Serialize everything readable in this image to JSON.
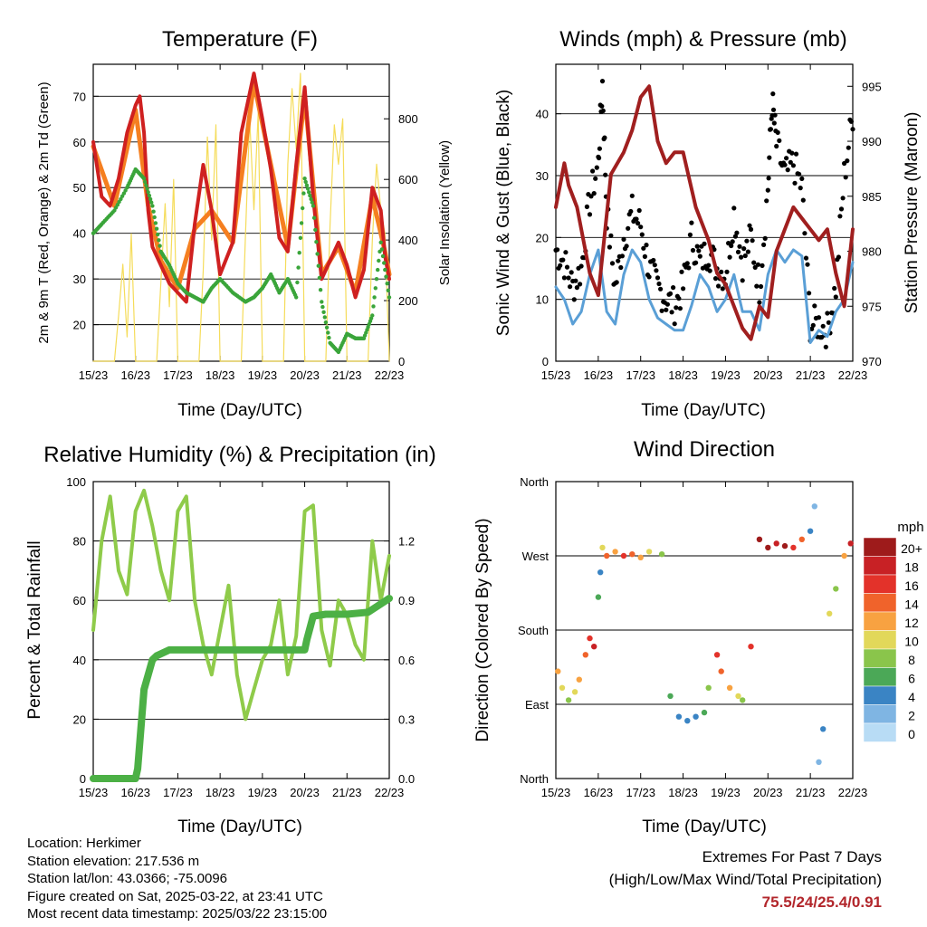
{
  "colors": {
    "temp2m": "#cf2020",
    "temp9m": "#f57f20",
    "dewpoint": "#3aa53a",
    "solar": "#f5dc5a",
    "wind": "#5a9fd6",
    "gust": "#000000",
    "pressure": "#a01f1f",
    "rh": "#8fcb4a",
    "precip": "#4cb045",
    "extremes": "#b2262b"
  },
  "info": {
    "location": "Location: Herkimer",
    "elevation": "Station elevation: 217.536 m",
    "latlon": "Station lat/lon: 43.0366; -75.0096",
    "created": "Figure created on Sat, 2025-03-22, at 23:41 UTC",
    "recent": "Most recent data timestamp: 2025/03/22 23:15:00"
  },
  "extremes": {
    "title": "Extremes For Past 7 Days",
    "subtitle": "(High/Low/Max Wind/Total Precipitation)",
    "values": "75.5/24/25.4/0.91"
  },
  "chart_data": [
    {
      "type": "line",
      "title": "Temperature (F)",
      "xlabel": "Time (Day/UTC)",
      "ylabel": "2m & 9m T (Red, Orange) & 2m Td (Green)",
      "ylabel_right": "Solar Insolation (Yellow)",
      "x_ticks": [
        "15/23",
        "16/23",
        "17/23",
        "18/23",
        "19/23",
        "20/23",
        "21/23",
        "22/23"
      ],
      "xlim": [
        0,
        7
      ],
      "ylim": [
        12,
        77
      ],
      "yticks": [
        20,
        30,
        40,
        50,
        60,
        70
      ],
      "ylim_right": [
        0,
        980
      ],
      "yticks_right": [
        0,
        200,
        400,
        600,
        800
      ],
      "grid": true,
      "series": [
        {
          "key": "t2m",
          "x": [
            0.0,
            0.2,
            0.4,
            0.6,
            0.8,
            1.0,
            1.1,
            1.2,
            1.3,
            1.4,
            1.6,
            1.8,
            2.0,
            2.2,
            2.4,
            2.6,
            2.8,
            3.0,
            3.3,
            3.5,
            3.8,
            4.0,
            4.2,
            4.4,
            4.6,
            4.8,
            5.0,
            5.2,
            5.4,
            5.6,
            5.8,
            6.0,
            6.2,
            6.4,
            6.6,
            6.8,
            6.9,
            7.0
          ],
          "y": [
            60,
            48,
            46,
            52,
            62,
            68,
            70,
            62,
            45,
            37,
            33,
            29,
            27,
            25,
            42,
            55,
            45,
            31,
            38,
            62,
            75,
            65,
            54,
            39,
            36,
            55,
            72,
            48,
            30,
            34,
            38,
            33,
            26,
            32,
            50,
            45,
            35,
            30
          ]
        },
        {
          "key": "t9m",
          "x": [
            0.0,
            0.5,
            1.0,
            1.3,
            1.6,
            2.0,
            2.4,
            2.8,
            3.3,
            3.8,
            4.2,
            4.6,
            5.0,
            5.4,
            5.8,
            6.2,
            6.6,
            6.9,
            7.0
          ],
          "y": [
            59,
            46,
            67,
            46,
            34,
            28,
            41,
            45,
            38,
            73,
            55,
            37,
            70,
            31,
            37,
            27,
            48,
            36,
            31
          ]
        },
        {
          "key": "td2m",
          "x": [
            0.0,
            0.2,
            0.5,
            0.8,
            1.0,
            1.2,
            1.4,
            1.6,
            1.8,
            2.0,
            2.2,
            2.4,
            2.6,
            2.8,
            3.0,
            3.3,
            3.6,
            3.8,
            4.0,
            4.2,
            4.4,
            4.6,
            4.8,
            5.0,
            5.2,
            5.4,
            5.6,
            5.8,
            6.0,
            6.2,
            6.4,
            6.6,
            6.8,
            7.0
          ],
          "y": [
            40,
            42,
            45,
            50,
            54,
            52,
            46,
            36,
            33,
            29,
            27,
            26,
            25,
            28,
            30,
            27,
            25,
            26,
            28,
            31,
            27,
            30,
            26,
            52,
            46,
            25,
            16,
            14,
            18,
            17,
            17,
            22,
            38,
            26
          ]
        },
        {
          "key": "solar",
          "x": [
            0.0,
            0.5,
            0.6,
            0.7,
            0.8,
            0.9,
            1.0,
            1.5,
            1.6,
            1.7,
            1.8,
            1.9,
            2.0,
            2.5,
            2.6,
            2.7,
            2.8,
            2.9,
            3.0,
            3.5,
            3.6,
            3.7,
            3.8,
            3.9,
            4.0,
            4.5,
            4.6,
            4.7,
            4.8,
            4.9,
            5.0,
            5.5,
            5.6,
            5.7,
            5.8,
            5.9,
            6.0,
            6.5,
            6.6,
            6.7,
            6.8,
            6.9,
            7.0
          ],
          "y": [
            0,
            0,
            150,
            320,
            80,
            420,
            0,
            0,
            260,
            520,
            180,
            600,
            0,
            0,
            300,
            740,
            400,
            780,
            0,
            0,
            420,
            800,
            500,
            820,
            0,
            0,
            650,
            900,
            700,
            950,
            0,
            0,
            450,
            780,
            650,
            800,
            0,
            0,
            400,
            650,
            500,
            420,
            0
          ]
        }
      ]
    },
    {
      "type": "scatter",
      "title": "Winds (mph) & Pressure (mb)",
      "xlabel": "Time (Day/UTC)",
      "ylabel": "Sonic Wind & Gust (Blue, Black)",
      "ylabel_right": "Station Pressure (Maroon)",
      "x_ticks": [
        "15/23",
        "16/23",
        "17/23",
        "18/23",
        "19/23",
        "20/23",
        "21/23",
        "22/23"
      ],
      "xlim": [
        0,
        7
      ],
      "ylim": [
        0,
        48
      ],
      "yticks": [
        0,
        10,
        20,
        30,
        40
      ],
      "ylim_right": [
        970,
        997
      ],
      "yticks_right": [
        970,
        975,
        980,
        985,
        990,
        995
      ],
      "grid": true,
      "series": [
        {
          "key": "wind",
          "x": [
            0.0,
            0.2,
            0.4,
            0.6,
            0.8,
            1.0,
            1.2,
            1.4,
            1.6,
            1.8,
            2.0,
            2.2,
            2.4,
            2.6,
            2.8,
            3.0,
            3.2,
            3.4,
            3.6,
            3.8,
            4.0,
            4.2,
            4.4,
            4.6,
            4.8,
            5.0,
            5.2,
            5.4,
            5.6,
            5.8,
            6.0,
            6.2,
            6.4,
            6.6,
            6.8,
            7.0
          ],
          "y": [
            12,
            10,
            6,
            8,
            14,
            18,
            8,
            6,
            14,
            18,
            16,
            10,
            7,
            6,
            5,
            5,
            9,
            14,
            12,
            8,
            10,
            14,
            8,
            8,
            5,
            14,
            18,
            16,
            18,
            17,
            3,
            5,
            4,
            8,
            10,
            16
          ]
        },
        {
          "key": "gust",
          "x": [
            0.0,
            0.2,
            0.4,
            0.6,
            0.8,
            1.0,
            1.1,
            1.2,
            1.4,
            1.6,
            1.8,
            2.0,
            2.2,
            2.4,
            2.6,
            2.8,
            3.0,
            3.2,
            3.4,
            3.6,
            3.8,
            4.0,
            4.2,
            4.4,
            4.6,
            4.8,
            5.0,
            5.1,
            5.2,
            5.4,
            5.6,
            5.8,
            6.0,
            6.2,
            6.4,
            6.6,
            6.8,
            7.0
          ],
          "y": [
            18,
            16,
            12,
            15,
            26,
            32,
            45,
            24,
            12,
            20,
            24,
            22,
            15,
            12,
            10,
            9,
            12,
            20,
            16,
            18,
            15,
            14,
            24,
            16,
            20,
            12,
            28,
            42,
            35,
            30,
            32,
            28,
            6,
            6,
            5,
            12,
            30,
            40
          ]
        },
        {
          "key": "pressure",
          "x": [
            0.0,
            0.2,
            0.3,
            0.5,
            0.8,
            1.0,
            1.3,
            1.6,
            1.8,
            2.0,
            2.2,
            2.4,
            2.6,
            2.8,
            3.0,
            3.3,
            3.6,
            3.8,
            4.0,
            4.2,
            4.4,
            4.6,
            4.8,
            5.0,
            5.2,
            5.4,
            5.6,
            5.8,
            6.0,
            6.2,
            6.4,
            6.6,
            6.8,
            7.0
          ],
          "y": [
            984,
            988,
            986,
            984,
            978,
            976,
            987,
            989,
            991,
            994,
            995,
            990,
            988,
            989,
            989,
            984,
            981,
            978,
            977,
            975,
            973,
            972,
            975,
            974,
            980,
            982,
            984,
            983,
            982,
            981,
            982,
            978,
            975,
            982
          ]
        }
      ]
    },
    {
      "type": "line",
      "title": "Relative Humidity (%) & Precipitation (in)",
      "xlabel": "Time (Day/UTC)",
      "ylabel": "Percent & Total Rainfall",
      "x_ticks": [
        "15/23",
        "16/23",
        "17/23",
        "18/23",
        "19/23",
        "20/23",
        "21/23",
        "22/23"
      ],
      "xlim": [
        0,
        7
      ],
      "ylim": [
        0,
        100
      ],
      "yticks": [
        0,
        20,
        40,
        60,
        80,
        100
      ],
      "ylim_right": [
        0,
        1.5
      ],
      "yticks_right": [
        "0.0",
        "0.3",
        "0.6",
        "0.9",
        "1.2"
      ],
      "grid": true,
      "series": [
        {
          "key": "rh",
          "x": [
            0.0,
            0.2,
            0.4,
            0.6,
            0.8,
            1.0,
            1.2,
            1.4,
            1.6,
            1.8,
            2.0,
            2.2,
            2.4,
            2.6,
            2.8,
            3.0,
            3.2,
            3.4,
            3.6,
            3.8,
            4.0,
            4.2,
            4.4,
            4.6,
            4.8,
            5.0,
            5.2,
            5.4,
            5.6,
            5.8,
            6.0,
            6.2,
            6.4,
            6.6,
            6.8,
            7.0
          ],
          "y": [
            50,
            80,
            95,
            70,
            62,
            90,
            97,
            85,
            70,
            60,
            90,
            95,
            60,
            45,
            35,
            50,
            65,
            35,
            20,
            30,
            40,
            45,
            60,
            35,
            48,
            90,
            92,
            50,
            38,
            60,
            55,
            45,
            40,
            80,
            60,
            75
          ]
        },
        {
          "key": "precip",
          "x": [
            0.0,
            0.5,
            1.0,
            1.05,
            1.2,
            1.4,
            1.5,
            1.8,
            2.0,
            3.0,
            4.0,
            5.0,
            5.05,
            5.2,
            5.5,
            6.0,
            6.5,
            7.0
          ],
          "y": [
            0,
            0,
            0,
            0.05,
            0.45,
            0.6,
            0.62,
            0.65,
            0.65,
            0.65,
            0.65,
            0.65,
            0.7,
            0.82,
            0.83,
            0.83,
            0.84,
            0.91
          ]
        }
      ]
    },
    {
      "type": "scatter",
      "title": "Wind Direction",
      "xlabel": "Time (Day/UTC)",
      "ylabel": "Direction (Colored By Speed)",
      "x_ticks": [
        "15/23",
        "16/23",
        "17/23",
        "18/23",
        "19/23",
        "20/23",
        "21/23",
        "22/23"
      ],
      "xlim": [
        0,
        7
      ],
      "ylim": [
        0,
        360
      ],
      "y_tick_labels": [
        "North",
        "East",
        "South",
        "West",
        "North"
      ],
      "grid": true,
      "legend_title": "mph",
      "legend_labels": [
        "20+",
        "18",
        "16",
        "14",
        "12",
        "10",
        "8",
        "6",
        "4",
        "2",
        "0"
      ],
      "legend_colors": [
        "#9e1b1b",
        "#c82125",
        "#e3322a",
        "#f0632b",
        "#f8a241",
        "#e2d85a",
        "#8ac54b",
        "#4ba857",
        "#3a84c4",
        "#7fb5e3",
        "#b8dcf5"
      ],
      "points": [
        {
          "x": 0.05,
          "dir": 130,
          "spd": 12
        },
        {
          "x": 0.15,
          "dir": 110,
          "spd": 10
        },
        {
          "x": 0.3,
          "dir": 95,
          "spd": 8
        },
        {
          "x": 0.45,
          "dir": 105,
          "spd": 10
        },
        {
          "x": 0.55,
          "dir": 120,
          "spd": 12
        },
        {
          "x": 0.7,
          "dir": 150,
          "spd": 14
        },
        {
          "x": 0.8,
          "dir": 170,
          "spd": 16
        },
        {
          "x": 0.9,
          "dir": 160,
          "spd": 18
        },
        {
          "x": 1.0,
          "dir": 220,
          "spd": 6
        },
        {
          "x": 1.05,
          "dir": 250,
          "spd": 4
        },
        {
          "x": 1.1,
          "dir": 280,
          "spd": 10
        },
        {
          "x": 1.2,
          "dir": 270,
          "spd": 14
        },
        {
          "x": 1.4,
          "dir": 275,
          "spd": 12
        },
        {
          "x": 1.6,
          "dir": 270,
          "spd": 16
        },
        {
          "x": 1.8,
          "dir": 272,
          "spd": 14
        },
        {
          "x": 2.0,
          "dir": 268,
          "spd": 12
        },
        {
          "x": 2.2,
          "dir": 275,
          "spd": 10
        },
        {
          "x": 2.5,
          "dir": 272,
          "spd": 8
        },
        {
          "x": 2.7,
          "dir": 100,
          "spd": 6
        },
        {
          "x": 2.9,
          "dir": 75,
          "spd": 4
        },
        {
          "x": 3.1,
          "dir": 70,
          "spd": 4
        },
        {
          "x": 3.3,
          "dir": 75,
          "spd": 4
        },
        {
          "x": 3.5,
          "dir": 80,
          "spd": 6
        },
        {
          "x": 3.6,
          "dir": 110,
          "spd": 8
        },
        {
          "x": 3.8,
          "dir": 150,
          "spd": 16
        },
        {
          "x": 3.9,
          "dir": 130,
          "spd": 14
        },
        {
          "x": 4.1,
          "dir": 110,
          "spd": 12
        },
        {
          "x": 4.3,
          "dir": 100,
          "spd": 10
        },
        {
          "x": 4.4,
          "dir": 95,
          "spd": 8
        },
        {
          "x": 4.6,
          "dir": 160,
          "spd": 16
        },
        {
          "x": 4.8,
          "dir": 290,
          "spd": 20
        },
        {
          "x": 5.0,
          "dir": 280,
          "spd": 20
        },
        {
          "x": 5.2,
          "dir": 285,
          "spd": 18
        },
        {
          "x": 5.4,
          "dir": 282,
          "spd": 20
        },
        {
          "x": 5.6,
          "dir": 280,
          "spd": 16
        },
        {
          "x": 5.8,
          "dir": 290,
          "spd": 14
        },
        {
          "x": 6.0,
          "dir": 300,
          "spd": 4
        },
        {
          "x": 6.1,
          "dir": 330,
          "spd": 2
        },
        {
          "x": 6.2,
          "dir": 20,
          "spd": 2
        },
        {
          "x": 6.3,
          "dir": 60,
          "spd": 4
        },
        {
          "x": 6.45,
          "dir": 200,
          "spd": 10
        },
        {
          "x": 6.6,
          "dir": 230,
          "spd": 8
        },
        {
          "x": 6.8,
          "dir": 270,
          "spd": 12
        },
        {
          "x": 6.95,
          "dir": 285,
          "spd": 18
        }
      ]
    }
  ]
}
